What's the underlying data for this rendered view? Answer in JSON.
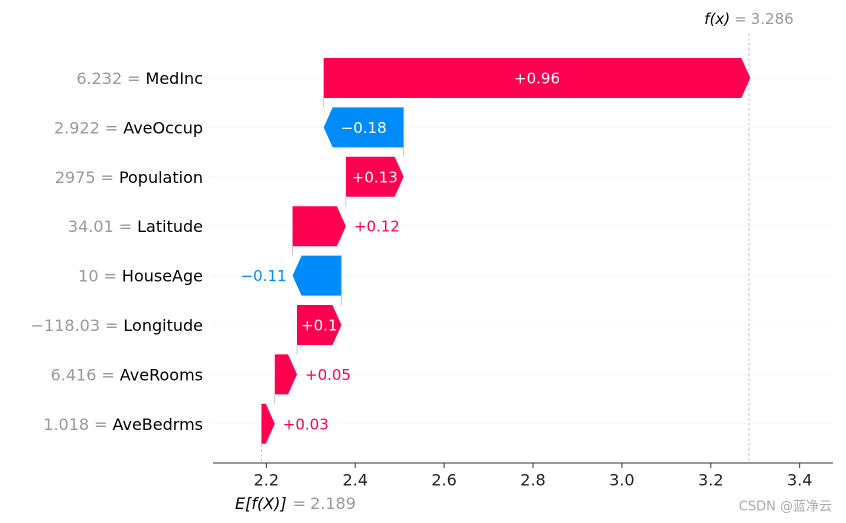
{
  "chart_data": {
    "type": "waterfall",
    "final_label": "f(x)",
    "final_value": 3.286,
    "base_label": "E[f(X)]",
    "base_value": 2.189,
    "separator": "=",
    "categories": [
      "MedInc",
      "AveOccup",
      "Population",
      "Latitude",
      "HouseAge",
      "Longitude",
      "AveRooms",
      "AveBedrms"
    ],
    "feature_values": [
      "6.232",
      "2.922",
      "2975",
      "34.01",
      "10",
      "−118.03",
      "6.416",
      "1.018"
    ],
    "values": [
      0.96,
      -0.18,
      0.13,
      0.12,
      -0.11,
      0.1,
      0.05,
      0.03
    ],
    "value_labels": [
      "+0.96",
      "−0.18",
      "+0.13",
      "+0.12",
      "−0.11",
      "+0.1",
      "+0.05",
      "+0.03"
    ],
    "positive_color": "#ff0051",
    "negative_color": "#008bfb",
    "xlim": [
      2.08,
      3.475
    ],
    "xticks": [
      2.2,
      2.4,
      2.6,
      2.8,
      {
        "value": 3,
        "label": "3.0"
      },
      3.2,
      3.4
    ],
    "watermark": "CSDN @蓝净云"
  }
}
